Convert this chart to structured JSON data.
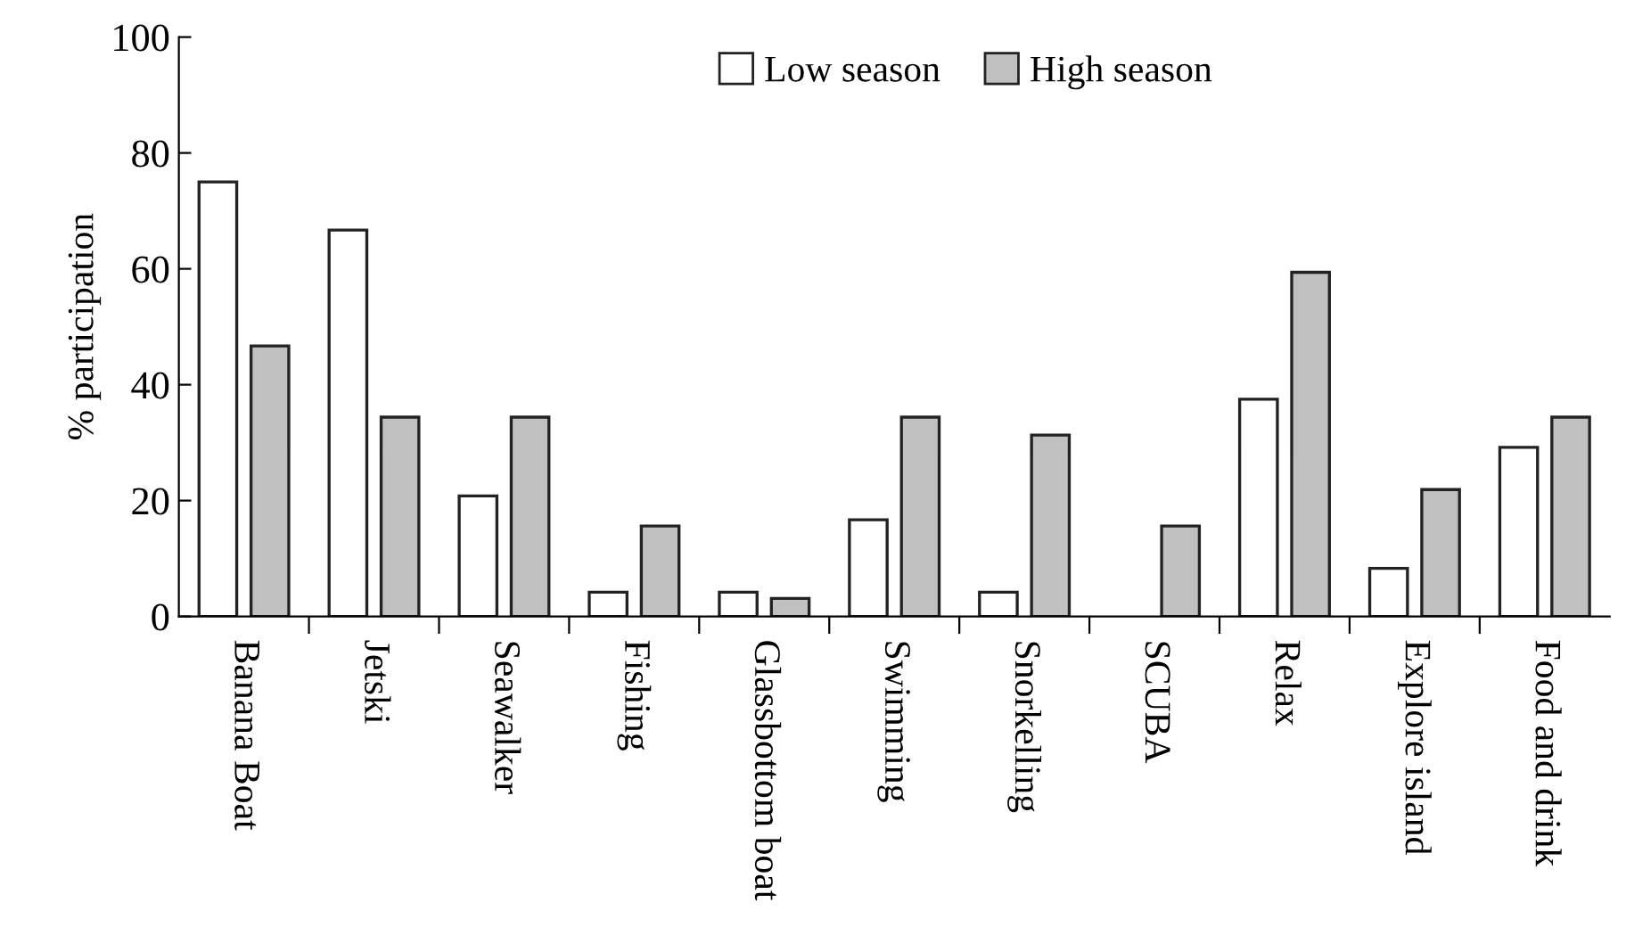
{
  "chart_data": {
    "type": "bar",
    "ylabel": "% participation",
    "categories": [
      "Banana Boat",
      "Jetski",
      "Seawalker",
      "Fishing",
      "Glassbottom boat",
      "Swimming",
      "Snorkelling",
      "SCUBA",
      "Relax",
      "Explore island",
      "Food and drink"
    ],
    "series": [
      {
        "name": "Low season",
        "color": "#ffffff",
        "values": [
          75,
          66.7,
          20.8,
          4.2,
          4.2,
          16.7,
          4.2,
          0,
          37.5,
          8.3,
          29.2
        ]
      },
      {
        "name": "High season",
        "color": "#c0c0c0",
        "values": [
          46.7,
          34.4,
          34.4,
          15.6,
          3.1,
          34.4,
          31.3,
          15.6,
          59.4,
          21.9,
          34.4
        ]
      }
    ],
    "ylim": [
      0,
      100
    ],
    "yticks": [
      0,
      20,
      40,
      60,
      80,
      100
    ],
    "grid": false,
    "legend": "top"
  }
}
